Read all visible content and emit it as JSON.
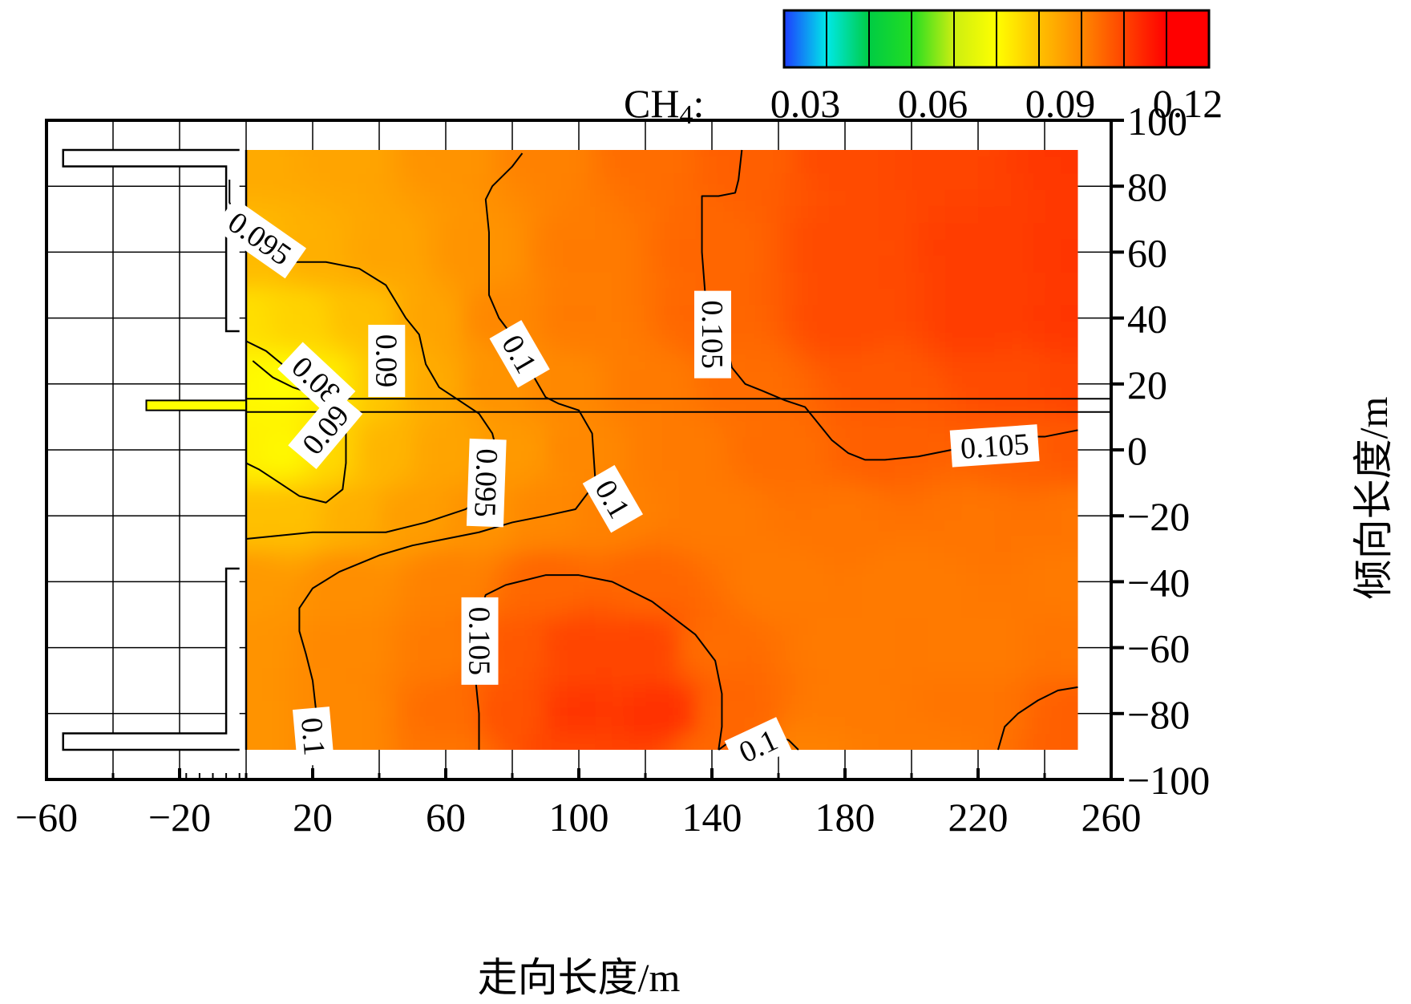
{
  "chart_data": {
    "type": "heatmap",
    "subtype": "filled-contour",
    "xlabel": "走向长度/m",
    "ylabel": "倾向长度/m",
    "xlim": [
      -60,
      260
    ],
    "ylim": [
      -100,
      100
    ],
    "xticks": [
      "−60",
      "−20",
      "20",
      "60",
      "100",
      "140",
      "180",
      "220",
      "260"
    ],
    "xtick_values": [
      -60,
      -20,
      20,
      60,
      100,
      140,
      180,
      220,
      260
    ],
    "yticks": [
      "100",
      "80",
      "60",
      "40",
      "20",
      "0",
      "−20",
      "−40",
      "−60",
      "−80",
      "−100"
    ],
    "ytick_values": [
      100,
      80,
      60,
      40,
      20,
      0,
      -20,
      -40,
      -60,
      -80,
      -100
    ],
    "grid": true,
    "field_extent": {
      "x": [
        0,
        250
      ],
      "y": [
        -91,
        91
      ]
    },
    "colorbar": {
      "variable_label": "CH",
      "variable_subscript": "4",
      "variable_suffix": ":",
      "tick_labels": [
        "0.03",
        "0.06",
        "0.09",
        "0.12"
      ],
      "tick_values": [
        0.03,
        0.06,
        0.09,
        0.12
      ],
      "range": [
        0.025,
        0.125
      ],
      "colors": [
        "#1e3cff",
        "#00e8e8",
        "#00cc44",
        "#22dd22",
        "#ccee11",
        "#ffff00",
        "#ffc000",
        "#ff8800",
        "#ff4400",
        "#ff0000"
      ],
      "placement": "top-right"
    },
    "contours": [
      {
        "level": 0.08,
        "label": "0.08",
        "points": [
          [
            2,
            27
          ],
          [
            8,
            22
          ],
          [
            14,
            19
          ],
          [
            20,
            17
          ],
          [
            25,
            15
          ]
        ]
      },
      {
        "level": 0.09,
        "label": "0.09",
        "points": [
          [
            0,
            33
          ],
          [
            6,
            30
          ],
          [
            12,
            25
          ],
          [
            16,
            22
          ],
          [
            22,
            18
          ],
          [
            28,
            15
          ],
          [
            30,
            10
          ],
          [
            30,
            -4
          ],
          [
            29,
            -12
          ],
          [
            24,
            -16
          ],
          [
            16,
            -14
          ],
          [
            10,
            -10
          ],
          [
            4,
            -6
          ],
          [
            0,
            -4
          ]
        ]
      },
      {
        "level": 0.095,
        "label": "0.095",
        "points": [
          [
            -5,
            82
          ],
          [
            -5,
            75
          ],
          [
            5,
            62
          ],
          [
            15,
            57
          ],
          [
            24,
            57
          ],
          [
            34,
            55
          ],
          [
            42,
            50
          ],
          [
            48,
            40
          ],
          [
            52,
            35
          ],
          [
            54,
            26
          ],
          [
            58,
            19
          ],
          [
            64,
            15
          ],
          [
            70,
            11
          ],
          [
            74,
            5
          ],
          [
            76,
            -3
          ],
          [
            74,
            -12
          ],
          [
            66,
            -18
          ],
          [
            54,
            -22
          ],
          [
            42,
            -25
          ],
          [
            30,
            -25
          ],
          [
            20,
            -25
          ],
          [
            10,
            -26
          ],
          [
            0,
            -27
          ]
        ]
      },
      {
        "level": 0.1,
        "label": "0.1",
        "points": [
          [
            83,
            90
          ],
          [
            80,
            86
          ],
          [
            74,
            80
          ],
          [
            72,
            76
          ],
          [
            73,
            66
          ],
          [
            73,
            56
          ],
          [
            73,
            47
          ],
          [
            76,
            40
          ],
          [
            82,
            32
          ],
          [
            86,
            23
          ],
          [
            90,
            16
          ],
          [
            94,
            14
          ],
          [
            100,
            12
          ],
          [
            104,
            5
          ],
          [
            105,
            -10
          ],
          [
            99,
            -18
          ],
          [
            90,
            -20
          ],
          [
            80,
            -22
          ],
          [
            70,
            -25
          ],
          [
            60,
            -27
          ],
          [
            50,
            -29
          ],
          [
            40,
            -32
          ],
          [
            28,
            -37
          ],
          [
            20,
            -42
          ],
          [
            16,
            -48
          ],
          [
            16,
            -55
          ],
          [
            18,
            -62
          ],
          [
            20,
            -70
          ],
          [
            21,
            -79
          ],
          [
            22,
            -86
          ],
          [
            22,
            -91
          ]
        ]
      },
      {
        "level": 0.105,
        "label": "0.105",
        "points": [
          [
            149,
            91
          ],
          [
            148,
            82
          ],
          [
            147,
            78
          ],
          [
            142,
            77
          ],
          [
            137,
            77
          ],
          [
            137,
            60
          ],
          [
            138,
            47
          ],
          [
            141,
            40
          ],
          [
            144,
            34
          ],
          [
            146,
            25
          ],
          [
            150,
            20
          ],
          [
            155,
            18
          ],
          [
            162,
            15
          ],
          [
            168,
            13
          ],
          [
            172,
            8
          ],
          [
            176,
            3
          ],
          [
            181,
            -1
          ],
          [
            186,
            -3
          ],
          [
            192,
            -3
          ],
          [
            202,
            -2
          ],
          [
            212,
            0
          ],
          [
            222,
            2
          ],
          [
            234,
            4
          ],
          [
            240,
            4
          ],
          [
            250,
            6
          ]
        ]
      },
      {
        "level": 0.105,
        "label": "0.105",
        "points": [
          [
            70,
            -91
          ],
          [
            70,
            -80
          ],
          [
            69,
            -70
          ],
          [
            69,
            -60
          ],
          [
            70,
            -50
          ],
          [
            72,
            -44
          ],
          [
            78,
            -41
          ],
          [
            90,
            -38
          ],
          [
            100,
            -38
          ],
          [
            110,
            -40
          ],
          [
            122,
            -46
          ],
          [
            135,
            -56
          ],
          [
            141,
            -64
          ],
          [
            143,
            -74
          ],
          [
            143,
            -84
          ],
          [
            142,
            -91
          ]
        ]
      },
      {
        "level": 0.1,
        "label": "0.1",
        "points": [
          [
            142,
            -91
          ],
          [
            146,
            -88
          ],
          [
            150,
            -87
          ],
          [
            158,
            -87
          ],
          [
            163,
            -88
          ],
          [
            166,
            -91
          ]
        ]
      },
      {
        "level": 0.1,
        "label": "0.1",
        "points": [
          [
            226,
            -91
          ],
          [
            228,
            -84
          ],
          [
            232,
            -80
          ],
          [
            238,
            -76
          ],
          [
            244,
            -73
          ],
          [
            250,
            -72
          ]
        ]
      }
    ],
    "contour_labels": [
      {
        "text": "0.095",
        "x": 4,
        "y": 64,
        "angle": 35
      },
      {
        "text": "0.09",
        "x": 42,
        "y": 27,
        "angle": 90
      },
      {
        "text": "0.08",
        "x": 21,
        "y": 21,
        "angle": 43
      },
      {
        "text": "0.09",
        "x": 24,
        "y": 6,
        "angle": -50
      },
      {
        "text": "0.1",
        "x": 82,
        "y": 29,
        "angle": 60
      },
      {
        "text": "0.095",
        "x": 72,
        "y": -10,
        "angle": 92
      },
      {
        "text": "0.1",
        "x": 110,
        "y": -15,
        "angle": 60
      },
      {
        "text": "0.105",
        "x": 140,
        "y": 35,
        "angle": 90
      },
      {
        "text": "0.105",
        "x": 225,
        "y": 1,
        "angle": -4
      },
      {
        "text": "0.105",
        "x": 70,
        "y": -58,
        "angle": 90
      },
      {
        "text": "0.1",
        "x": 20,
        "y": -87,
        "angle": 85
      },
      {
        "text": "0.1",
        "x": 154,
        "y": -90,
        "angle": -25
      }
    ],
    "field_points": [
      [
        0,
        90,
        0.094
      ],
      [
        30,
        90,
        0.095
      ],
      [
        60,
        90,
        0.098
      ],
      [
        90,
        90,
        0.101
      ],
      [
        120,
        90,
        0.104
      ],
      [
        150,
        90,
        0.106
      ],
      [
        180,
        90,
        0.109
      ],
      [
        210,
        90,
        0.11
      ],
      [
        250,
        90,
        0.112
      ],
      [
        0,
        60,
        0.091
      ],
      [
        20,
        60,
        0.093
      ],
      [
        40,
        60,
        0.095
      ],
      [
        70,
        60,
        0.098
      ],
      [
        100,
        60,
        0.102
      ],
      [
        140,
        60,
        0.105
      ],
      [
        180,
        60,
        0.109
      ],
      [
        220,
        60,
        0.111
      ],
      [
        250,
        60,
        0.112
      ],
      [
        0,
        40,
        0.085
      ],
      [
        15,
        40,
        0.087
      ],
      [
        35,
        40,
        0.09
      ],
      [
        55,
        40,
        0.095
      ],
      [
        75,
        40,
        0.1
      ],
      [
        100,
        40,
        0.102
      ],
      [
        140,
        40,
        0.105
      ],
      [
        180,
        40,
        0.109
      ],
      [
        220,
        40,
        0.111
      ],
      [
        250,
        40,
        0.112
      ],
      [
        0,
        20,
        0.081
      ],
      [
        12,
        20,
        0.08
      ],
      [
        25,
        20,
        0.083
      ],
      [
        40,
        20,
        0.089
      ],
      [
        55,
        20,
        0.094
      ],
      [
        75,
        20,
        0.098
      ],
      [
        95,
        20,
        0.1
      ],
      [
        120,
        20,
        0.102
      ],
      [
        150,
        20,
        0.104
      ],
      [
        190,
        20,
        0.107
      ],
      [
        230,
        20,
        0.109
      ],
      [
        250,
        20,
        0.11
      ],
      [
        0,
        0,
        0.082
      ],
      [
        12,
        0,
        0.081
      ],
      [
        25,
        0,
        0.086
      ],
      [
        40,
        0,
        0.092
      ],
      [
        60,
        0,
        0.095
      ],
      [
        80,
        0,
        0.097
      ],
      [
        100,
        0,
        0.1
      ],
      [
        130,
        0,
        0.102
      ],
      [
        160,
        0,
        0.104
      ],
      [
        190,
        0,
        0.106
      ],
      [
        230,
        0,
        0.106
      ],
      [
        250,
        0,
        0.107
      ],
      [
        0,
        -20,
        0.09
      ],
      [
        15,
        -20,
        0.09
      ],
      [
        30,
        -20,
        0.093
      ],
      [
        50,
        -20,
        0.096
      ],
      [
        70,
        -20,
        0.098
      ],
      [
        90,
        -20,
        0.1
      ],
      [
        110,
        -20,
        0.101
      ],
      [
        140,
        -20,
        0.102
      ],
      [
        180,
        -20,
        0.103
      ],
      [
        220,
        -20,
        0.103
      ],
      [
        250,
        -20,
        0.103
      ],
      [
        0,
        -40,
        0.097
      ],
      [
        30,
        -40,
        0.099
      ],
      [
        60,
        -40,
        0.101
      ],
      [
        90,
        -40,
        0.105
      ],
      [
        120,
        -40,
        0.105
      ],
      [
        160,
        -40,
        0.102
      ],
      [
        200,
        -40,
        0.102
      ],
      [
        250,
        -40,
        0.102
      ],
      [
        0,
        -60,
        0.098
      ],
      [
        30,
        -60,
        0.1
      ],
      [
        60,
        -60,
        0.102
      ],
      [
        80,
        -60,
        0.107
      ],
      [
        100,
        -60,
        0.11
      ],
      [
        120,
        -60,
        0.11
      ],
      [
        140,
        -60,
        0.104
      ],
      [
        180,
        -60,
        0.102
      ],
      [
        220,
        -60,
        0.102
      ],
      [
        250,
        -60,
        0.103
      ],
      [
        0,
        -80,
        0.098
      ],
      [
        30,
        -80,
        0.1
      ],
      [
        60,
        -80,
        0.104
      ],
      [
        80,
        -80,
        0.108
      ],
      [
        100,
        -80,
        0.112
      ],
      [
        125,
        -80,
        0.113
      ],
      [
        145,
        -80,
        0.105
      ],
      [
        180,
        -80,
        0.102
      ],
      [
        220,
        -80,
        0.103
      ],
      [
        250,
        -80,
        0.106
      ],
      [
        0,
        -91,
        0.098
      ],
      [
        30,
        -91,
        0.1
      ],
      [
        60,
        -91,
        0.103
      ],
      [
        100,
        -91,
        0.11
      ],
      [
        140,
        -91,
        0.105
      ],
      [
        170,
        -91,
        0.101
      ],
      [
        210,
        -91,
        0.102
      ],
      [
        250,
        -91,
        0.106
      ]
    ]
  }
}
